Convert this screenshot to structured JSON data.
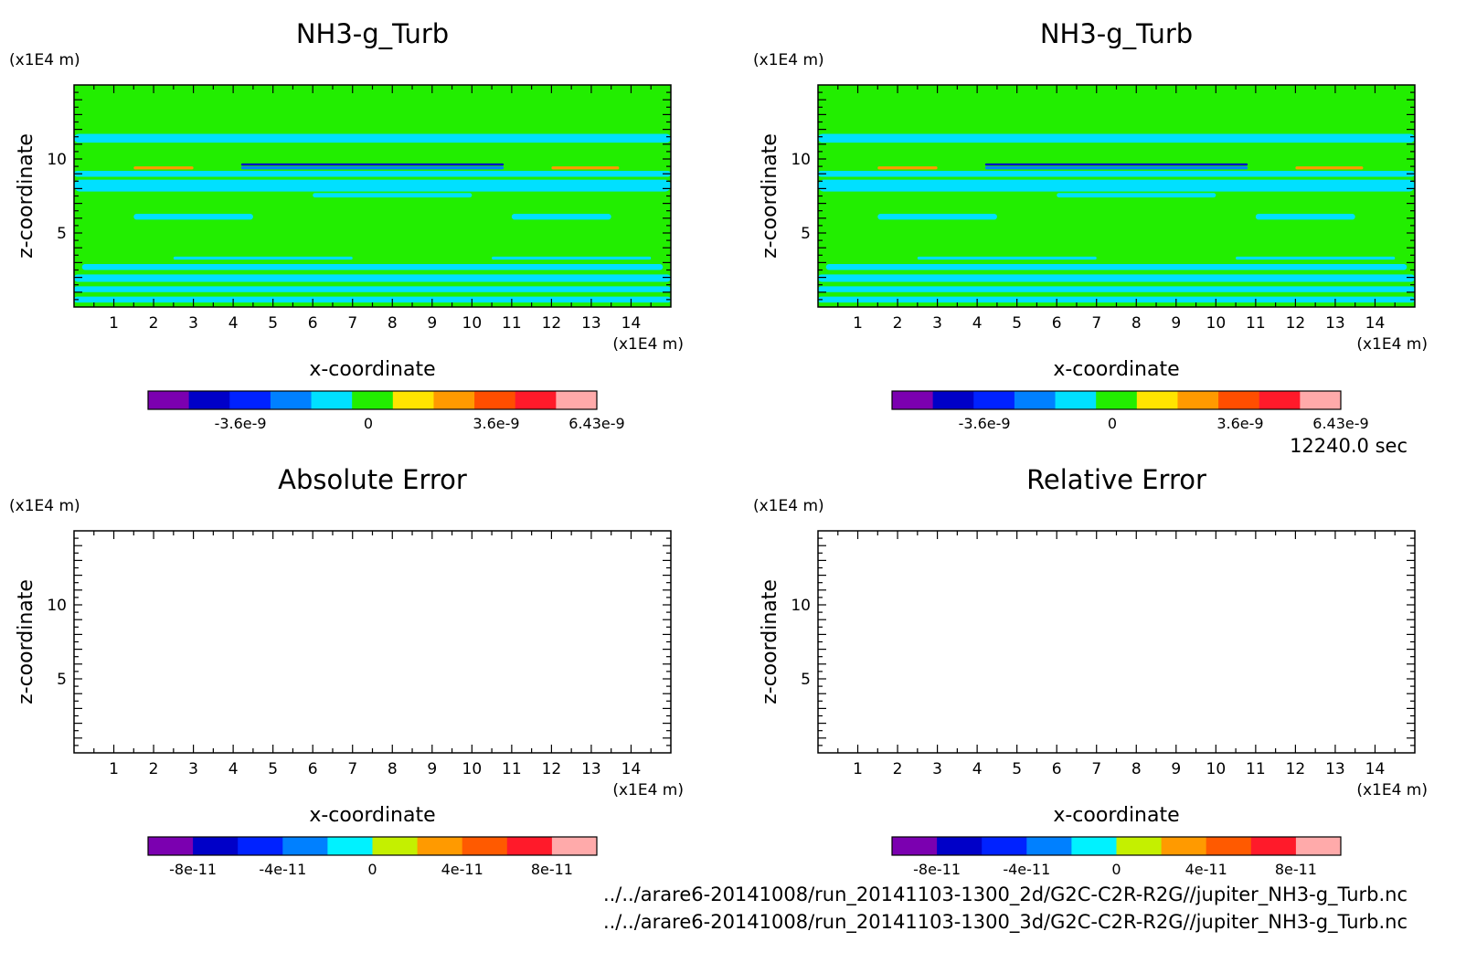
{
  "time_label": "12240.0 sec",
  "files": [
    "../../arare6-20141008/run_20141103-1300_2d/G2C-C2R-R2G//jupiter_NH3-g_Turb.nc",
    "../../arare6-20141008/run_20141103-1300_3d/G2C-C2R-R2G//jupiter_NH3-g_Turb.nc"
  ],
  "colors": {
    "field_palette": [
      "#7b00b0",
      "#0000c8",
      "#0022ff",
      "#0080ff",
      "#00e0ff",
      "#22ee00",
      "#ffe400",
      "#ff9a00",
      "#ff4e00",
      "#ff1a2a",
      "#ffaaaa"
    ],
    "error_palette": [
      "#7b00b0",
      "#0000c8",
      "#0022ff",
      "#0080ff",
      "#00f2ff",
      "#c4f000",
      "#ff9a00",
      "#ff5a00",
      "#ff1a2a",
      "#ffaaaa"
    ]
  },
  "chart_data": [
    {
      "type": "heatmap",
      "title": "NH3-g_Turb",
      "xlabel": "x-coordinate",
      "ylabel": "z-coordinate",
      "x_unit": "(x1E4 m)",
      "y_unit": "(x1E4 m)",
      "xlim": [
        0,
        15
      ],
      "ylim": [
        0,
        15
      ],
      "x_ticks": [
        1,
        2,
        3,
        4,
        5,
        6,
        7,
        8,
        9,
        10,
        11,
        12,
        13,
        14
      ],
      "y_ticks": [
        5,
        10
      ],
      "colorbar": {
        "ticks": [
          "-3.6e-9",
          "0",
          "3.6e-9",
          "6.43e-9"
        ],
        "tick_values": [
          -3.6e-09,
          0,
          3.6e-09,
          6.43e-09
        ],
        "range": [
          -6.2e-09,
          6.43e-09
        ]
      },
      "background_value": 0,
      "bands": [
        {
          "x": [
            0,
            15
          ],
          "z": [
            0.3,
            0.7
          ],
          "level": -5e-10
        },
        {
          "x": [
            0,
            15
          ],
          "z": [
            1.0,
            1.4
          ],
          "level": -5e-10
        },
        {
          "x": [
            0,
            15
          ],
          "z": [
            1.7,
            2.2
          ],
          "level": -5e-10
        },
        {
          "x": [
            0.2,
            14.8
          ],
          "z": [
            2.5,
            2.9
          ],
          "level": -5e-10
        },
        {
          "x": [
            2.5,
            7
          ],
          "z": [
            3.2,
            3.4
          ],
          "level": -5e-10
        },
        {
          "x": [
            10.5,
            14.5
          ],
          "z": [
            3.2,
            3.4
          ],
          "level": -5e-10
        },
        {
          "x": [
            1.5,
            4.5
          ],
          "z": [
            5.9,
            6.3
          ],
          "level": -5e-10
        },
        {
          "x": [
            11,
            13.5
          ],
          "z": [
            5.9,
            6.3
          ],
          "level": -5e-10
        },
        {
          "x": [
            6,
            10
          ],
          "z": [
            7.4,
            7.7
          ],
          "level": -5e-10
        },
        {
          "x": [
            0,
            15
          ],
          "z": [
            7.8,
            8.6
          ],
          "level": -5e-10
        },
        {
          "x": [
            0,
            15
          ],
          "z": [
            8.8,
            9.2
          ],
          "level": -5e-10
        },
        {
          "x": [
            4.2,
            10.8
          ],
          "z": [
            9.3,
            9.5
          ],
          "level": -1.8e-09
        },
        {
          "x": [
            4.2,
            10.8
          ],
          "z": [
            9.55,
            9.7
          ],
          "level": -4.5e-09
        },
        {
          "x": [
            1.5,
            3
          ],
          "z": [
            9.3,
            9.5
          ],
          "level": 2e-09
        },
        {
          "x": [
            12,
            13.7
          ],
          "z": [
            9.3,
            9.5
          ],
          "level": 2e-09
        },
        {
          "x": [
            0,
            15
          ],
          "z": [
            11.1,
            11.7
          ],
          "level": -5e-10
        }
      ]
    },
    {
      "type": "heatmap",
      "title": "NH3-g_Turb",
      "xlabel": "x-coordinate",
      "ylabel": "z-coordinate",
      "x_unit": "(x1E4 m)",
      "y_unit": "(x1E4 m)",
      "xlim": [
        0,
        15
      ],
      "ylim": [
        0,
        15
      ],
      "x_ticks": [
        1,
        2,
        3,
        4,
        5,
        6,
        7,
        8,
        9,
        10,
        11,
        12,
        13,
        14
      ],
      "y_ticks": [
        5,
        10
      ],
      "colorbar": {
        "ticks": [
          "-3.6e-9",
          "0",
          "3.6e-9",
          "6.43e-9"
        ],
        "tick_values": [
          -3.6e-09,
          0,
          3.6e-09,
          6.43e-09
        ],
        "range": [
          -6.2e-09,
          6.43e-09
        ]
      },
      "background_value": 0,
      "bands": [
        {
          "x": [
            0,
            15
          ],
          "z": [
            0.3,
            0.7
          ],
          "level": -5e-10
        },
        {
          "x": [
            0,
            15
          ],
          "z": [
            1.0,
            1.4
          ],
          "level": -5e-10
        },
        {
          "x": [
            0,
            15
          ],
          "z": [
            1.7,
            2.2
          ],
          "level": -5e-10
        },
        {
          "x": [
            0.2,
            14.8
          ],
          "z": [
            2.5,
            2.9
          ],
          "level": -5e-10
        },
        {
          "x": [
            2.5,
            7
          ],
          "z": [
            3.2,
            3.4
          ],
          "level": -5e-10
        },
        {
          "x": [
            10.5,
            14.5
          ],
          "z": [
            3.2,
            3.4
          ],
          "level": -5e-10
        },
        {
          "x": [
            1.5,
            4.5
          ],
          "z": [
            5.9,
            6.3
          ],
          "level": -5e-10
        },
        {
          "x": [
            11,
            13.5
          ],
          "z": [
            5.9,
            6.3
          ],
          "level": -5e-10
        },
        {
          "x": [
            6,
            10
          ],
          "z": [
            7.4,
            7.7
          ],
          "level": -5e-10
        },
        {
          "x": [
            0,
            15
          ],
          "z": [
            7.8,
            8.6
          ],
          "level": -5e-10
        },
        {
          "x": [
            0,
            15
          ],
          "z": [
            8.8,
            9.2
          ],
          "level": -5e-10
        },
        {
          "x": [
            4.2,
            10.8
          ],
          "z": [
            9.3,
            9.5
          ],
          "level": -1.8e-09
        },
        {
          "x": [
            4.2,
            10.8
          ],
          "z": [
            9.55,
            9.7
          ],
          "level": -4.5e-09
        },
        {
          "x": [
            1.5,
            3
          ],
          "z": [
            9.3,
            9.5
          ],
          "level": 2e-09
        },
        {
          "x": [
            12,
            13.7
          ],
          "z": [
            9.3,
            9.5
          ],
          "level": 2e-09
        },
        {
          "x": [
            0,
            15
          ],
          "z": [
            11.1,
            11.7
          ],
          "level": -5e-10
        }
      ]
    },
    {
      "type": "heatmap",
      "title": "Absolute Error",
      "xlabel": "x-coordinate",
      "ylabel": "z-coordinate",
      "x_unit": "(x1E4 m)",
      "y_unit": "(x1E4 m)",
      "xlim": [
        0,
        15
      ],
      "ylim": [
        0,
        15
      ],
      "x_ticks": [
        1,
        2,
        3,
        4,
        5,
        6,
        7,
        8,
        9,
        10,
        11,
        12,
        13,
        14
      ],
      "y_ticks": [
        5,
        10
      ],
      "colorbar": {
        "ticks": [
          "-8e-11",
          "-4e-11",
          "0",
          "4e-11",
          "8e-11"
        ],
        "tick_values": [
          -8e-11,
          -4e-11,
          0,
          4e-11,
          8e-11
        ],
        "range": [
          -1e-10,
          1e-10
        ]
      },
      "bands": []
    },
    {
      "type": "heatmap",
      "title": "Relative Error",
      "xlabel": "x-coordinate",
      "ylabel": "z-coordinate",
      "x_unit": "(x1E4 m)",
      "y_unit": "(x1E4 m)",
      "xlim": [
        0,
        15
      ],
      "ylim": [
        0,
        15
      ],
      "x_ticks": [
        1,
        2,
        3,
        4,
        5,
        6,
        7,
        8,
        9,
        10,
        11,
        12,
        13,
        14
      ],
      "y_ticks": [
        5,
        10
      ],
      "colorbar": {
        "ticks": [
          "-8e-11",
          "-4e-11",
          "0",
          "4e-11",
          "8e-11"
        ],
        "tick_values": [
          -8e-11,
          -4e-11,
          0,
          4e-11,
          8e-11
        ],
        "range": [
          -1e-10,
          1e-10
        ]
      },
      "bands": []
    }
  ]
}
